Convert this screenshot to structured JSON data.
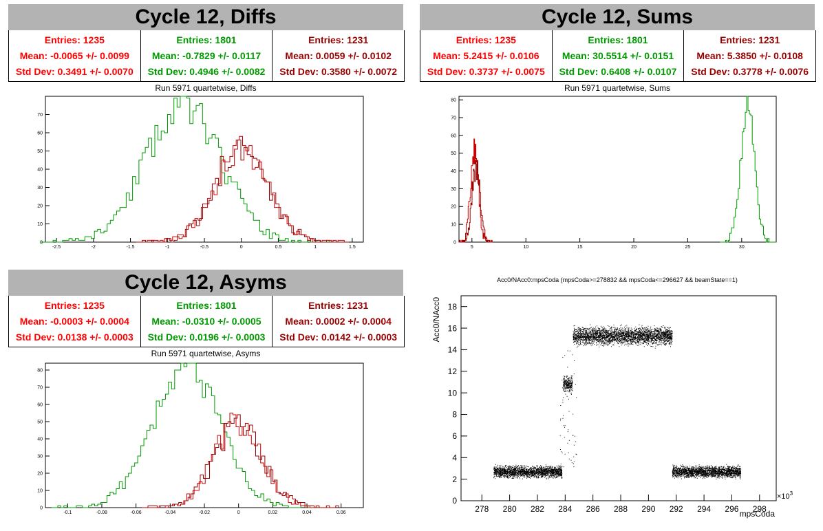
{
  "stat_colors": [
    "#ff0000",
    "#009900",
    "#990000"
  ],
  "series_colors": {
    "green": "#009900",
    "red": "#cc0000",
    "darkred": "#990000"
  },
  "panels": {
    "diffs": {
      "header": "Cycle 12, Diffs",
      "subtitle": "Run 5971 quartetwise, Diffs",
      "stats": [
        {
          "entries": "Entries: 1235",
          "mean": "Mean: -0.0065 +/- 0.0099",
          "std": "Std Dev: 0.3491 +/- 0.0070"
        },
        {
          "entries": "Entries: 1801",
          "mean": "Mean: -0.7829 +/- 0.0117",
          "std": "Std Dev: 0.4946 +/- 0.0082"
        },
        {
          "entries": "Entries: 1231",
          "mean": "Mean: 0.0059 +/- 0.0102",
          "std": "Std Dev: 0.3580 +/- 0.0072"
        }
      ]
    },
    "sums": {
      "header": "Cycle 12, Sums",
      "subtitle": "Run 5971 quartetwise, Sums",
      "stats": [
        {
          "entries": "Entries: 1235",
          "mean": "Mean: 5.2415 +/- 0.0106",
          "std": "Std Dev: 0.3737 +/- 0.0075"
        },
        {
          "entries": "Entries: 1801",
          "mean": "Mean: 30.5514 +/- 0.0151",
          "std": "Std Dev: 0.6408 +/- 0.0107"
        },
        {
          "entries": "Entries: 1231",
          "mean": "Mean: 5.3850 +/- 0.0108",
          "std": "Std Dev: 0.3778 +/- 0.0076"
        }
      ]
    },
    "asyms": {
      "header": "Cycle 12, Asyms",
      "subtitle": "Run 5971 quartetwise, Asyms",
      "stats": [
        {
          "entries": "Entries: 1235",
          "mean": "Mean: -0.0003 +/- 0.0004",
          "std": "Std Dev: 0.0138 +/- 0.0003"
        },
        {
          "entries": "Entries: 1801",
          "mean": "Mean: -0.0310 +/- 0.0005",
          "std": "Std Dev: 0.0196 +/- 0.0003"
        },
        {
          "entries": "Entries: 1231",
          "mean": "Mean: 0.0002 +/- 0.0004",
          "std": "Std Dev: 0.0142 +/- 0.0003"
        }
      ]
    },
    "scatter": {
      "subtitle": "Acc0/NAcc0:mpsCoda (mpsCoda>=278832 && mpsCoda<=296627 && beamState==1)",
      "xlabel": "mpsCoda",
      "ylabel": "Acc0/NAcc0",
      "exponent": "×10",
      "exponent_power": "3"
    }
  },
  "chart_data": [
    {
      "type": "histogram",
      "name": "diffs",
      "xlim": [
        -2.65,
        1.65
      ],
      "ylim": [
        0,
        80
      ],
      "x_ticks": [
        -2.5,
        -2,
        -1.5,
        -1,
        -0.5,
        0,
        0.5,
        1,
        1.5
      ],
      "y_ticks": [
        0,
        10,
        20,
        30,
        40,
        50,
        60,
        70
      ],
      "series": [
        {
          "color": "green",
          "mean": -0.7829,
          "std": 0.4946,
          "peak": 76,
          "bin": 0.043,
          "seed": 11
        },
        {
          "color": "red",
          "mean": -0.0065,
          "std": 0.3491,
          "peak": 52,
          "bin": 0.043,
          "seed": 23
        },
        {
          "color": "darkred",
          "mean": 0.0059,
          "std": 0.358,
          "peak": 50,
          "bin": 0.043,
          "seed": 37
        }
      ]
    },
    {
      "type": "histogram",
      "name": "sums",
      "xlim": [
        3.8,
        33.2
      ],
      "ylim": [
        0,
        82
      ],
      "x_ticks": [
        5,
        10,
        15,
        20,
        25,
        30
      ],
      "y_ticks": [
        0,
        10,
        20,
        30,
        40,
        50,
        60,
        70,
        80
      ],
      "series": [
        {
          "color": "green",
          "mean": 30.5514,
          "std": 0.6408,
          "peak": 78,
          "bin": 0.13,
          "seed": 41
        },
        {
          "color": "red",
          "mean": 5.2415,
          "std": 0.3737,
          "peak": 50,
          "bin": 0.06,
          "seed": 53
        },
        {
          "color": "darkred",
          "mean": 5.385,
          "std": 0.3778,
          "peak": 42,
          "bin": 0.06,
          "seed": 67
        }
      ]
    },
    {
      "type": "histogram",
      "name": "asyms",
      "xlim": [
        -0.113,
        0.073
      ],
      "ylim": [
        0,
        84
      ],
      "x_ticks": [
        -0.1,
        -0.08,
        -0.06,
        -0.04,
        -0.02,
        0,
        0.02,
        0.04,
        0.06
      ],
      "y_ticks": [
        0,
        10,
        20,
        30,
        40,
        50,
        60,
        70,
        80
      ],
      "series": [
        {
          "color": "green",
          "mean": -0.031,
          "std": 0.0196,
          "peak": 81,
          "bin": 0.0018,
          "seed": 71
        },
        {
          "color": "red",
          "mean": -0.0003,
          "std": 0.0138,
          "peak": 50,
          "bin": 0.0018,
          "seed": 83
        },
        {
          "color": "darkred",
          "mean": 0.0002,
          "std": 0.0142,
          "peak": 48,
          "bin": 0.0018,
          "seed": 97
        }
      ]
    },
    {
      "type": "scatter",
      "name": "scatter",
      "xlim": [
        276.5,
        299.2
      ],
      "ylim": [
        0,
        19
      ],
      "x_ticks": [
        278,
        280,
        282,
        284,
        286,
        288,
        290,
        292,
        294,
        296,
        298
      ],
      "y_ticks": [
        0,
        2,
        4,
        6,
        8,
        10,
        12,
        14,
        16,
        18
      ],
      "clusters": [
        {
          "x": [
            278.832,
            283.75
          ],
          "y": 2.7,
          "spread": 0.35
        },
        {
          "x": [
            283.85,
            284.5
          ],
          "y": 10.8,
          "spread": 0.5
        },
        {
          "x": [
            284.55,
            291.7
          ],
          "y": 15.3,
          "spread": 0.55
        },
        {
          "x": [
            291.7,
            296.627
          ],
          "y": 2.7,
          "spread": 0.35
        }
      ]
    }
  ]
}
